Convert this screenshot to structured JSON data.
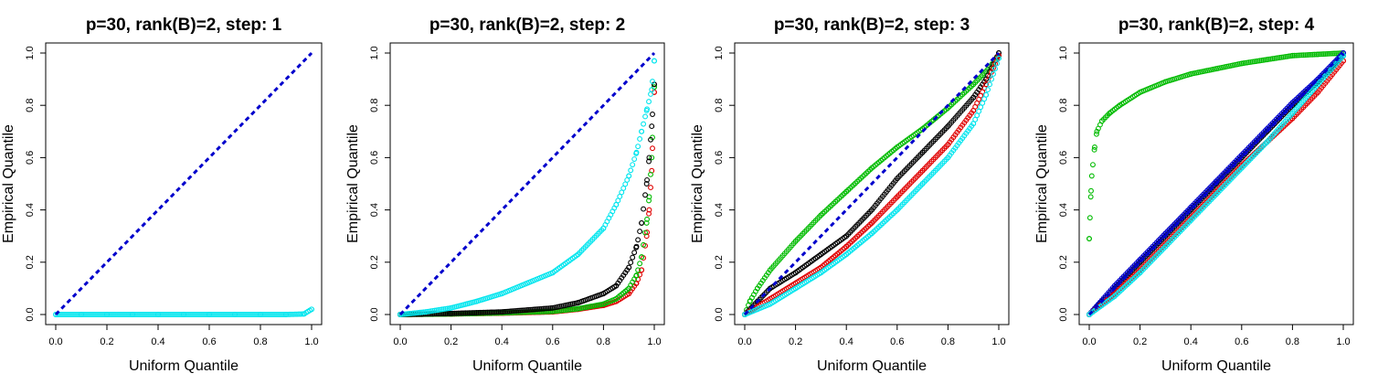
{
  "chart_data": [
    {
      "type": "scatter",
      "title": "p=30, rank(B)=2, step: 1",
      "xlabel": "Uniform Quantile",
      "ylabel": "Empirical Quantile",
      "xlim": [
        0,
        1
      ],
      "ylim": [
        0,
        1
      ],
      "xticks": [
        "0.0",
        "0.2",
        "0.4",
        "0.6",
        "0.8",
        "1.0"
      ],
      "yticks": [
        "0.0",
        "0.2",
        "0.4",
        "0.6",
        "0.8",
        "1.0"
      ],
      "reference_line": {
        "x": [
          0,
          1
        ],
        "y": [
          0,
          1
        ],
        "color": "#0000cc"
      },
      "series": [
        {
          "name": "cyan",
          "color": "#00e5ee",
          "x": [
            0.0,
            0.1,
            0.2,
            0.3,
            0.4,
            0.5,
            0.6,
            0.7,
            0.8,
            0.9,
            0.97,
            1.0
          ],
          "y": [
            0.0,
            0.0,
            0.0,
            0.0,
            0.0,
            0.0,
            0.0,
            0.0,
            0.0,
            0.0,
            0.002,
            0.02
          ]
        }
      ]
    },
    {
      "type": "scatter",
      "title": "p=30, rank(B)=2, step: 2",
      "xlabel": "Uniform Quantile",
      "ylabel": "Empirical Quantile",
      "xlim": [
        0,
        1
      ],
      "ylim": [
        0,
        1
      ],
      "xticks": [
        "0.0",
        "0.2",
        "0.4",
        "0.6",
        "0.8",
        "1.0"
      ],
      "yticks": [
        "0.0",
        "0.2",
        "0.4",
        "0.6",
        "0.8",
        "1.0"
      ],
      "reference_line": {
        "x": [
          0,
          1
        ],
        "y": [
          0,
          1
        ],
        "color": "#0000cc"
      },
      "series": [
        {
          "name": "red",
          "color": "#e00000",
          "x": [
            0.0,
            0.2,
            0.4,
            0.6,
            0.7,
            0.8,
            0.85,
            0.9,
            0.93,
            0.95,
            0.97,
            0.98,
            0.99,
            1.0
          ],
          "y": [
            0.0,
            0.002,
            0.005,
            0.01,
            0.02,
            0.035,
            0.05,
            0.08,
            0.12,
            0.17,
            0.3,
            0.4,
            0.55,
            0.85
          ]
        },
        {
          "name": "green",
          "color": "#00bb00",
          "x": [
            0.0,
            0.2,
            0.4,
            0.6,
            0.7,
            0.8,
            0.85,
            0.9,
            0.93,
            0.95,
            0.97,
            0.98,
            0.99,
            1.0
          ],
          "y": [
            0.0,
            0.002,
            0.006,
            0.012,
            0.022,
            0.04,
            0.06,
            0.1,
            0.15,
            0.22,
            0.35,
            0.45,
            0.6,
            0.87
          ]
        },
        {
          "name": "black",
          "color": "#000000",
          "x": [
            0.0,
            0.2,
            0.4,
            0.6,
            0.7,
            0.8,
            0.85,
            0.9,
            0.93,
            0.95,
            0.97,
            0.98,
            0.99,
            1.0
          ],
          "y": [
            0.0,
            0.004,
            0.01,
            0.025,
            0.045,
            0.08,
            0.11,
            0.18,
            0.26,
            0.35,
            0.5,
            0.6,
            0.72,
            0.88
          ]
        },
        {
          "name": "cyan",
          "color": "#00e5ee",
          "x": [
            0.0,
            0.1,
            0.2,
            0.3,
            0.4,
            0.5,
            0.6,
            0.7,
            0.8,
            0.85,
            0.9,
            0.93,
            0.95,
            0.97,
            0.99,
            1.0
          ],
          "y": [
            0.0,
            0.01,
            0.025,
            0.05,
            0.08,
            0.12,
            0.16,
            0.23,
            0.33,
            0.42,
            0.53,
            0.62,
            0.7,
            0.78,
            0.86,
            0.97
          ]
        }
      ]
    },
    {
      "type": "scatter",
      "title": "p=30, rank(B)=2, step: 3",
      "xlabel": "Uniform Quantile",
      "ylabel": "Empirical Quantile",
      "xlim": [
        0,
        1
      ],
      "ylim": [
        0,
        1
      ],
      "xticks": [
        "0.0",
        "0.2",
        "0.4",
        "0.6",
        "0.8",
        "1.0"
      ],
      "yticks": [
        "0.0",
        "0.2",
        "0.4",
        "0.6",
        "0.8",
        "1.0"
      ],
      "reference_line": {
        "x": [
          0,
          1
        ],
        "y": [
          0,
          1
        ],
        "color": "#0000cc"
      },
      "series": [
        {
          "name": "green",
          "color": "#00bb00",
          "x": [
            0.0,
            0.02,
            0.05,
            0.1,
            0.2,
            0.3,
            0.4,
            0.5,
            0.6,
            0.7,
            0.8,
            0.9,
            0.95,
            1.0
          ],
          "y": [
            0.0,
            0.05,
            0.1,
            0.17,
            0.28,
            0.38,
            0.47,
            0.56,
            0.64,
            0.71,
            0.79,
            0.88,
            0.93,
            0.99
          ]
        },
        {
          "name": "black",
          "color": "#000000",
          "x": [
            0.0,
            0.05,
            0.1,
            0.2,
            0.3,
            0.4,
            0.5,
            0.6,
            0.7,
            0.8,
            0.9,
            0.95,
            1.0
          ],
          "y": [
            0.0,
            0.05,
            0.1,
            0.16,
            0.23,
            0.3,
            0.4,
            0.52,
            0.62,
            0.72,
            0.83,
            0.9,
            1.0
          ]
        },
        {
          "name": "red",
          "color": "#e00000",
          "x": [
            0.0,
            0.05,
            0.1,
            0.2,
            0.3,
            0.4,
            0.5,
            0.6,
            0.7,
            0.8,
            0.9,
            0.95,
            1.0
          ],
          "y": [
            0.0,
            0.03,
            0.06,
            0.12,
            0.18,
            0.26,
            0.35,
            0.45,
            0.55,
            0.65,
            0.78,
            0.88,
            0.99
          ]
        },
        {
          "name": "cyan",
          "color": "#00e5ee",
          "x": [
            0.0,
            0.05,
            0.1,
            0.2,
            0.3,
            0.4,
            0.5,
            0.6,
            0.7,
            0.8,
            0.9,
            0.95,
            1.0
          ],
          "y": [
            0.0,
            0.02,
            0.04,
            0.1,
            0.16,
            0.23,
            0.31,
            0.4,
            0.5,
            0.6,
            0.73,
            0.84,
            0.98
          ]
        }
      ]
    },
    {
      "type": "scatter",
      "title": "p=30, rank(B)=2, step: 4",
      "xlabel": "Uniform Quantile",
      "ylabel": "Empirical Quantile",
      "xlim": [
        0,
        1
      ],
      "ylim": [
        0,
        1
      ],
      "xticks": [
        "0.0",
        "0.2",
        "0.4",
        "0.6",
        "0.8",
        "1.0"
      ],
      "yticks": [
        "0.0",
        "0.2",
        "0.4",
        "0.6",
        "0.8",
        "1.0"
      ],
      "reference_line": {
        "x": [
          0,
          1
        ],
        "y": [
          0,
          1
        ],
        "color": "#0000cc"
      },
      "series": [
        {
          "name": "green",
          "color": "#00bb00",
          "x": [
            0.0,
            0.003,
            0.006,
            0.01,
            0.02,
            0.03,
            0.05,
            0.08,
            0.12,
            0.2,
            0.3,
            0.4,
            0.5,
            0.6,
            0.7,
            0.8,
            0.9,
            1.0
          ],
          "y": [
            0.29,
            0.37,
            0.45,
            0.53,
            0.63,
            0.7,
            0.74,
            0.77,
            0.8,
            0.85,
            0.89,
            0.92,
            0.94,
            0.96,
            0.975,
            0.99,
            0.995,
            1.0
          ]
        },
        {
          "name": "black",
          "color": "#000000",
          "x": [
            0.0,
            0.1,
            0.2,
            0.3,
            0.4,
            0.5,
            0.6,
            0.7,
            0.8,
            0.9,
            1.0
          ],
          "y": [
            0.0,
            0.1,
            0.2,
            0.3,
            0.4,
            0.5,
            0.6,
            0.7,
            0.8,
            0.89,
            0.99
          ]
        },
        {
          "name": "blue",
          "color": "#0000cc",
          "x": [
            0.0,
            0.1,
            0.2,
            0.3,
            0.4,
            0.5,
            0.6,
            0.7,
            0.8,
            0.9,
            1.0
          ],
          "y": [
            0.0,
            0.11,
            0.21,
            0.31,
            0.41,
            0.51,
            0.61,
            0.71,
            0.81,
            0.9,
            1.0
          ]
        },
        {
          "name": "red",
          "color": "#e00000",
          "x": [
            0.0,
            0.1,
            0.2,
            0.3,
            0.4,
            0.5,
            0.6,
            0.7,
            0.8,
            0.9,
            1.0
          ],
          "y": [
            0.0,
            0.08,
            0.17,
            0.27,
            0.37,
            0.47,
            0.57,
            0.66,
            0.75,
            0.85,
            0.97
          ]
        },
        {
          "name": "cyan",
          "color": "#00e5ee",
          "x": [
            0.0,
            0.1,
            0.2,
            0.3,
            0.4,
            0.5,
            0.6,
            0.7,
            0.8,
            0.9,
            1.0
          ],
          "y": [
            0.0,
            0.07,
            0.16,
            0.26,
            0.36,
            0.46,
            0.56,
            0.66,
            0.77,
            0.88,
            0.99
          ]
        }
      ]
    }
  ]
}
